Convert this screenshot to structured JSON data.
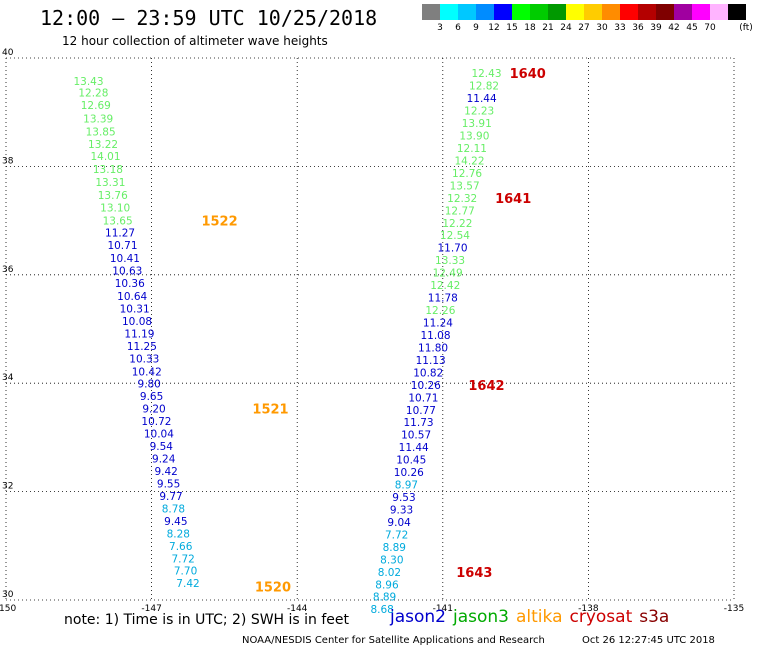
{
  "header": {
    "title": "12:00 – 23:59 UTC 10/25/2018",
    "subtitle": "12 hour collection of altimeter wave heights"
  },
  "colorbar": {
    "unit": "(ft)",
    "bins": [
      {
        "color": "#7f7f7f",
        "label": ""
      },
      {
        "color": "#00ffff",
        "label": "3"
      },
      {
        "color": "#00c8ff",
        "label": "6"
      },
      {
        "color": "#008cff",
        "label": "9"
      },
      {
        "color": "#0000ff",
        "label": "12"
      },
      {
        "color": "#00ff00",
        "label": "15"
      },
      {
        "color": "#00cc00",
        "label": "18"
      },
      {
        "color": "#009900",
        "label": "21"
      },
      {
        "color": "#ffff00",
        "label": "24"
      },
      {
        "color": "#ffcc00",
        "label": "27"
      },
      {
        "color": "#ff8c00",
        "label": "30"
      },
      {
        "color": "#ff0000",
        "label": "33"
      },
      {
        "color": "#b40000",
        "label": "36"
      },
      {
        "color": "#7f0000",
        "label": "39"
      },
      {
        "color": "#a000a0",
        "label": "42"
      },
      {
        "color": "#ff00ff",
        "label": "45"
      },
      {
        "color": "#ffb4ff",
        "label": "70"
      },
      {
        "color": "#000000",
        "label": ""
      }
    ]
  },
  "note": "note:  1) Time is in UTC;  2) SWH is in feet",
  "satellites": [
    {
      "name": "jason2",
      "color": "#0000cc"
    },
    {
      "name": "jason3",
      "color": "#00aa00"
    },
    {
      "name": "altika",
      "color": "#ff9900"
    },
    {
      "name": "cryosat",
      "color": "#cc0000"
    },
    {
      "name": "s3a",
      "color": "#880000"
    }
  ],
  "footer": {
    "credit": "NOAA/NESDIS Center for Satellite Applications and Research",
    "timestamp": "Oct 26 12:27:45 UTC 2018"
  },
  "chart_data": {
    "type": "scatter",
    "title": "12:00 – 23:59 UTC 10/25/2018",
    "subtitle": "12 hour collection of altimeter wave heights",
    "xlabel": "",
    "ylabel": "",
    "xlim": [
      -150,
      -135
    ],
    "ylim": [
      30,
      40
    ],
    "x_ticks": [
      "-150",
      "-147",
      "-144",
      "-141",
      "-138",
      "-135"
    ],
    "y_ticks": [
      "30",
      "32",
      "34",
      "36",
      "38",
      "40"
    ],
    "grid": true,
    "grid_style": "dotted",
    "colors": {
      "light_green": "#66ee66",
      "blue": "#0000cc",
      "cyan": "#00aadd",
      "orange": "#ff9900",
      "red": "#cc0000"
    },
    "series": [
      {
        "track": "west",
        "points": [
          {
            "x": -148.3,
            "y": 39.58,
            "label": "13.43",
            "color": "light_green"
          },
          {
            "x": -148.2,
            "y": 39.36,
            "label": "12.28",
            "color": "light_green"
          },
          {
            "x": -148.15,
            "y": 39.13,
            "label": "12.69",
            "color": "light_green"
          },
          {
            "x": -148.1,
            "y": 38.88,
            "label": "13.39",
            "color": "light_green"
          },
          {
            "x": -148.05,
            "y": 38.64,
            "label": "13.85",
            "color": "light_green"
          },
          {
            "x": -148.0,
            "y": 38.41,
            "label": "13.22",
            "color": "light_green"
          },
          {
            "x": -147.95,
            "y": 38.19,
            "label": "14.01",
            "color": "light_green"
          },
          {
            "x": -147.9,
            "y": 37.95,
            "label": "13.18",
            "color": "light_green"
          },
          {
            "x": -147.85,
            "y": 37.71,
            "label": "13.31",
            "color": "light_green"
          },
          {
            "x": -147.8,
            "y": 37.47,
            "label": "13.76",
            "color": "light_green"
          },
          {
            "x": -147.75,
            "y": 37.24,
            "label": "13.10",
            "color": "light_green"
          },
          {
            "x": -147.7,
            "y": 37.0,
            "label": "13.65",
            "color": "light_green"
          },
          {
            "x": -147.65,
            "y": 36.78,
            "label": "11.27",
            "color": "blue"
          },
          {
            "x": -147.6,
            "y": 36.55,
            "label": "10.71",
            "color": "blue"
          },
          {
            "x": -147.55,
            "y": 36.31,
            "label": "10.41",
            "color": "blue"
          },
          {
            "x": -147.5,
            "y": 36.08,
            "label": "10.63",
            "color": "blue"
          },
          {
            "x": -147.45,
            "y": 35.85,
            "label": "10.36",
            "color": "blue"
          },
          {
            "x": -147.4,
            "y": 35.61,
            "label": "10.64",
            "color": "blue"
          },
          {
            "x": -147.35,
            "y": 35.38,
            "label": "10.31",
            "color": "blue"
          },
          {
            "x": -147.3,
            "y": 35.15,
            "label": "10.08",
            "color": "blue"
          },
          {
            "x": -147.25,
            "y": 34.92,
            "label": "11.19",
            "color": "blue"
          },
          {
            "x": -147.2,
            "y": 34.69,
            "label": "11.25",
            "color": "blue"
          },
          {
            "x": -147.15,
            "y": 34.46,
            "label": "10.33",
            "color": "blue"
          },
          {
            "x": -147.1,
            "y": 34.22,
            "label": "10.42",
            "color": "blue"
          },
          {
            "x": -147.05,
            "y": 33.99,
            "label": "9.80",
            "color": "blue"
          },
          {
            "x": -147.0,
            "y": 33.76,
            "label": "9.65",
            "color": "blue"
          },
          {
            "x": -146.95,
            "y": 33.53,
            "label": "9.20",
            "color": "blue"
          },
          {
            "x": -146.9,
            "y": 33.3,
            "label": "10.72",
            "color": "blue"
          },
          {
            "x": -146.85,
            "y": 33.07,
            "label": "10.04",
            "color": "blue"
          },
          {
            "x": -146.8,
            "y": 32.84,
            "label": "9.54",
            "color": "blue"
          },
          {
            "x": -146.75,
            "y": 32.61,
            "label": "9.24",
            "color": "blue"
          },
          {
            "x": -146.7,
            "y": 32.38,
            "label": "9.42",
            "color": "blue"
          },
          {
            "x": -146.65,
            "y": 32.15,
            "label": "9.55",
            "color": "blue"
          },
          {
            "x": -146.6,
            "y": 31.92,
            "label": "9.77",
            "color": "blue"
          },
          {
            "x": -146.55,
            "y": 31.69,
            "label": "8.78",
            "color": "cyan"
          },
          {
            "x": -146.5,
            "y": 31.46,
            "label": "9.45",
            "color": "blue"
          },
          {
            "x": -146.45,
            "y": 31.23,
            "label": "8.28",
            "color": "cyan"
          },
          {
            "x": -146.4,
            "y": 31.0,
            "label": "7.66",
            "color": "cyan"
          },
          {
            "x": -146.35,
            "y": 30.77,
            "label": "7.72",
            "color": "cyan"
          },
          {
            "x": -146.3,
            "y": 30.54,
            "label": "7.70",
            "color": "cyan"
          },
          {
            "x": -146.25,
            "y": 30.31,
            "label": "7.42",
            "color": "cyan"
          }
        ]
      },
      {
        "track": "east",
        "points": [
          {
            "x": -140.1,
            "y": 39.72,
            "label": "12.43",
            "color": "light_green"
          },
          {
            "x": -140.15,
            "y": 39.49,
            "label": "12.82",
            "color": "light_green"
          },
          {
            "x": -140.2,
            "y": 39.26,
            "label": "11.44",
            "color": "blue"
          },
          {
            "x": -140.25,
            "y": 39.03,
            "label": "12.23",
            "color": "light_green"
          },
          {
            "x": -140.3,
            "y": 38.8,
            "label": "13.91",
            "color": "light_green"
          },
          {
            "x": -140.35,
            "y": 38.57,
            "label": "13.90",
            "color": "light_green"
          },
          {
            "x": -140.4,
            "y": 38.34,
            "label": "12.11",
            "color": "light_green"
          },
          {
            "x": -140.45,
            "y": 38.11,
            "label": "14.22",
            "color": "light_green"
          },
          {
            "x": -140.5,
            "y": 37.88,
            "label": "12.76",
            "color": "light_green"
          },
          {
            "x": -140.55,
            "y": 37.65,
            "label": "13.57",
            "color": "light_green"
          },
          {
            "x": -140.6,
            "y": 37.42,
            "label": "12.32",
            "color": "light_green"
          },
          {
            "x": -140.65,
            "y": 37.19,
            "label": "12.77",
            "color": "light_green"
          },
          {
            "x": -140.7,
            "y": 36.96,
            "label": "12.22",
            "color": "light_green"
          },
          {
            "x": -140.75,
            "y": 36.73,
            "label": "12.54",
            "color": "light_green"
          },
          {
            "x": -140.8,
            "y": 36.5,
            "label": "11.70",
            "color": "blue"
          },
          {
            "x": -140.85,
            "y": 36.27,
            "label": "13.33",
            "color": "light_green"
          },
          {
            "x": -140.9,
            "y": 36.04,
            "label": "12.49",
            "color": "light_green"
          },
          {
            "x": -140.95,
            "y": 35.81,
            "label": "12.42",
            "color": "light_green"
          },
          {
            "x": -141.0,
            "y": 35.58,
            "label": "11.78",
            "color": "blue"
          },
          {
            "x": -141.05,
            "y": 35.35,
            "label": "12.26",
            "color": "light_green"
          },
          {
            "x": -141.1,
            "y": 35.12,
            "label": "11.24",
            "color": "blue"
          },
          {
            "x": -141.15,
            "y": 34.89,
            "label": "11.08",
            "color": "blue"
          },
          {
            "x": -141.2,
            "y": 34.66,
            "label": "11.80",
            "color": "blue"
          },
          {
            "x": -141.25,
            "y": 34.43,
            "label": "11.13",
            "color": "blue"
          },
          {
            "x": -141.3,
            "y": 34.2,
            "label": "10.82",
            "color": "blue"
          },
          {
            "x": -141.35,
            "y": 33.97,
            "label": "10.26",
            "color": "blue"
          },
          {
            "x": -141.4,
            "y": 33.74,
            "label": "10.71",
            "color": "blue"
          },
          {
            "x": -141.45,
            "y": 33.51,
            "label": "10.77",
            "color": "blue"
          },
          {
            "x": -141.5,
            "y": 33.28,
            "label": "11.73",
            "color": "blue"
          },
          {
            "x": -141.55,
            "y": 33.05,
            "label": "10.57",
            "color": "blue"
          },
          {
            "x": -141.6,
            "y": 32.82,
            "label": "11.44",
            "color": "blue"
          },
          {
            "x": -141.65,
            "y": 32.59,
            "label": "10.45",
            "color": "blue"
          },
          {
            "x": -141.7,
            "y": 32.36,
            "label": "10.26",
            "color": "blue"
          },
          {
            "x": -141.75,
            "y": 32.13,
            "label": "8.97",
            "color": "cyan"
          },
          {
            "x": -141.8,
            "y": 31.9,
            "label": "9.53",
            "color": "blue"
          },
          {
            "x": -141.85,
            "y": 31.67,
            "label": "9.33",
            "color": "blue"
          },
          {
            "x": -141.9,
            "y": 31.44,
            "label": "9.04",
            "color": "blue"
          },
          {
            "x": -141.95,
            "y": 31.21,
            "label": "7.72",
            "color": "cyan"
          },
          {
            "x": -142.0,
            "y": 30.98,
            "label": "8.89",
            "color": "cyan"
          },
          {
            "x": -142.05,
            "y": 30.75,
            "label": "8.30",
            "color": "cyan"
          },
          {
            "x": -142.1,
            "y": 30.52,
            "label": "8.02",
            "color": "cyan"
          },
          {
            "x": -142.15,
            "y": 30.29,
            "label": "8.96",
            "color": "cyan"
          },
          {
            "x": -142.2,
            "y": 30.06,
            "label": "8.89",
            "color": "cyan"
          },
          {
            "x": -142.25,
            "y": 29.83,
            "label": "8.68",
            "color": "cyan"
          }
        ]
      }
    ],
    "time_labels": [
      {
        "text": "1522",
        "x": -145.6,
        "y": 37.0,
        "color": "orange"
      },
      {
        "text": "1521",
        "x": -144.55,
        "y": 33.53,
        "color": "orange"
      },
      {
        "text": "1520",
        "x": -144.5,
        "y": 30.25,
        "color": "orange"
      },
      {
        "text": "1640",
        "x": -139.25,
        "y": 39.72,
        "color": "red"
      },
      {
        "text": "1641",
        "x": -139.55,
        "y": 37.42,
        "color": "red"
      },
      {
        "text": "1642",
        "x": -140.1,
        "y": 33.97,
        "color": "red"
      },
      {
        "text": "1643",
        "x": -140.35,
        "y": 30.52,
        "color": "red"
      }
    ]
  }
}
